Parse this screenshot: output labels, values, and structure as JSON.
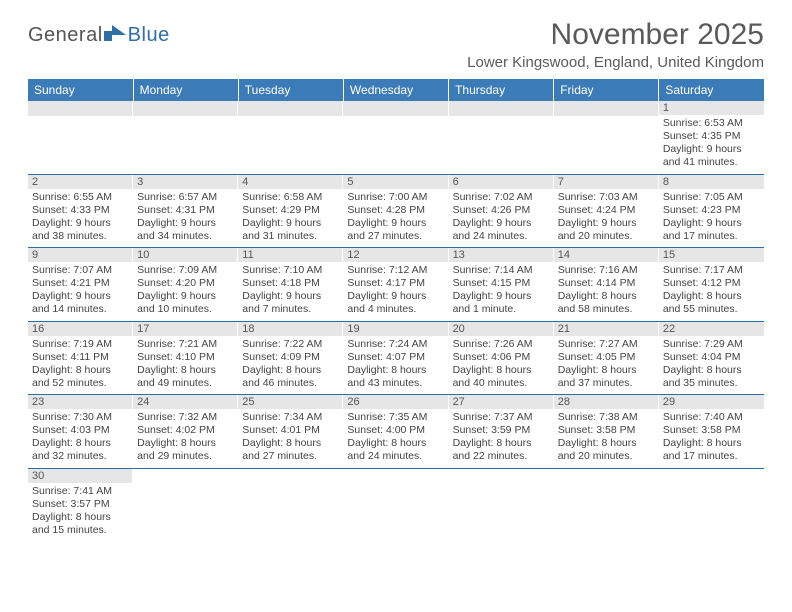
{
  "logo": {
    "text1": "General",
    "text2": "Blue"
  },
  "title": "November 2025",
  "location": "Lower Kingswood, England, United Kingdom",
  "calendar": {
    "type": "table",
    "header_bg": "#3b7bb8",
    "header_fg": "#ffffff",
    "daynum_bg": "#e6e6e6",
    "rule_color": "#2e6da4",
    "columns": [
      "Sunday",
      "Monday",
      "Tuesday",
      "Wednesday",
      "Thursday",
      "Friday",
      "Saturday"
    ],
    "weeks": [
      [
        null,
        null,
        null,
        null,
        null,
        null,
        {
          "n": "1",
          "sr": "Sunrise: 6:53 AM",
          "ss": "Sunset: 4:35 PM",
          "d1": "Daylight: 9 hours",
          "d2": "and 41 minutes."
        }
      ],
      [
        {
          "n": "2",
          "sr": "Sunrise: 6:55 AM",
          "ss": "Sunset: 4:33 PM",
          "d1": "Daylight: 9 hours",
          "d2": "and 38 minutes."
        },
        {
          "n": "3",
          "sr": "Sunrise: 6:57 AM",
          "ss": "Sunset: 4:31 PM",
          "d1": "Daylight: 9 hours",
          "d2": "and 34 minutes."
        },
        {
          "n": "4",
          "sr": "Sunrise: 6:58 AM",
          "ss": "Sunset: 4:29 PM",
          "d1": "Daylight: 9 hours",
          "d2": "and 31 minutes."
        },
        {
          "n": "5",
          "sr": "Sunrise: 7:00 AM",
          "ss": "Sunset: 4:28 PM",
          "d1": "Daylight: 9 hours",
          "d2": "and 27 minutes."
        },
        {
          "n": "6",
          "sr": "Sunrise: 7:02 AM",
          "ss": "Sunset: 4:26 PM",
          "d1": "Daylight: 9 hours",
          "d2": "and 24 minutes."
        },
        {
          "n": "7",
          "sr": "Sunrise: 7:03 AM",
          "ss": "Sunset: 4:24 PM",
          "d1": "Daylight: 9 hours",
          "d2": "and 20 minutes."
        },
        {
          "n": "8",
          "sr": "Sunrise: 7:05 AM",
          "ss": "Sunset: 4:23 PM",
          "d1": "Daylight: 9 hours",
          "d2": "and 17 minutes."
        }
      ],
      [
        {
          "n": "9",
          "sr": "Sunrise: 7:07 AM",
          "ss": "Sunset: 4:21 PM",
          "d1": "Daylight: 9 hours",
          "d2": "and 14 minutes."
        },
        {
          "n": "10",
          "sr": "Sunrise: 7:09 AM",
          "ss": "Sunset: 4:20 PM",
          "d1": "Daylight: 9 hours",
          "d2": "and 10 minutes."
        },
        {
          "n": "11",
          "sr": "Sunrise: 7:10 AM",
          "ss": "Sunset: 4:18 PM",
          "d1": "Daylight: 9 hours",
          "d2": "and 7 minutes."
        },
        {
          "n": "12",
          "sr": "Sunrise: 7:12 AM",
          "ss": "Sunset: 4:17 PM",
          "d1": "Daylight: 9 hours",
          "d2": "and 4 minutes."
        },
        {
          "n": "13",
          "sr": "Sunrise: 7:14 AM",
          "ss": "Sunset: 4:15 PM",
          "d1": "Daylight: 9 hours",
          "d2": "and 1 minute."
        },
        {
          "n": "14",
          "sr": "Sunrise: 7:16 AM",
          "ss": "Sunset: 4:14 PM",
          "d1": "Daylight: 8 hours",
          "d2": "and 58 minutes."
        },
        {
          "n": "15",
          "sr": "Sunrise: 7:17 AM",
          "ss": "Sunset: 4:12 PM",
          "d1": "Daylight: 8 hours",
          "d2": "and 55 minutes."
        }
      ],
      [
        {
          "n": "16",
          "sr": "Sunrise: 7:19 AM",
          "ss": "Sunset: 4:11 PM",
          "d1": "Daylight: 8 hours",
          "d2": "and 52 minutes."
        },
        {
          "n": "17",
          "sr": "Sunrise: 7:21 AM",
          "ss": "Sunset: 4:10 PM",
          "d1": "Daylight: 8 hours",
          "d2": "and 49 minutes."
        },
        {
          "n": "18",
          "sr": "Sunrise: 7:22 AM",
          "ss": "Sunset: 4:09 PM",
          "d1": "Daylight: 8 hours",
          "d2": "and 46 minutes."
        },
        {
          "n": "19",
          "sr": "Sunrise: 7:24 AM",
          "ss": "Sunset: 4:07 PM",
          "d1": "Daylight: 8 hours",
          "d2": "and 43 minutes."
        },
        {
          "n": "20",
          "sr": "Sunrise: 7:26 AM",
          "ss": "Sunset: 4:06 PM",
          "d1": "Daylight: 8 hours",
          "d2": "and 40 minutes."
        },
        {
          "n": "21",
          "sr": "Sunrise: 7:27 AM",
          "ss": "Sunset: 4:05 PM",
          "d1": "Daylight: 8 hours",
          "d2": "and 37 minutes."
        },
        {
          "n": "22",
          "sr": "Sunrise: 7:29 AM",
          "ss": "Sunset: 4:04 PM",
          "d1": "Daylight: 8 hours",
          "d2": "and 35 minutes."
        }
      ],
      [
        {
          "n": "23",
          "sr": "Sunrise: 7:30 AM",
          "ss": "Sunset: 4:03 PM",
          "d1": "Daylight: 8 hours",
          "d2": "and 32 minutes."
        },
        {
          "n": "24",
          "sr": "Sunrise: 7:32 AM",
          "ss": "Sunset: 4:02 PM",
          "d1": "Daylight: 8 hours",
          "d2": "and 29 minutes."
        },
        {
          "n": "25",
          "sr": "Sunrise: 7:34 AM",
          "ss": "Sunset: 4:01 PM",
          "d1": "Daylight: 8 hours",
          "d2": "and 27 minutes."
        },
        {
          "n": "26",
          "sr": "Sunrise: 7:35 AM",
          "ss": "Sunset: 4:00 PM",
          "d1": "Daylight: 8 hours",
          "d2": "and 24 minutes."
        },
        {
          "n": "27",
          "sr": "Sunrise: 7:37 AM",
          "ss": "Sunset: 3:59 PM",
          "d1": "Daylight: 8 hours",
          "d2": "and 22 minutes."
        },
        {
          "n": "28",
          "sr": "Sunrise: 7:38 AM",
          "ss": "Sunset: 3:58 PM",
          "d1": "Daylight: 8 hours",
          "d2": "and 20 minutes."
        },
        {
          "n": "29",
          "sr": "Sunrise: 7:40 AM",
          "ss": "Sunset: 3:58 PM",
          "d1": "Daylight: 8 hours",
          "d2": "and 17 minutes."
        }
      ],
      [
        {
          "n": "30",
          "sr": "Sunrise: 7:41 AM",
          "ss": "Sunset: 3:57 PM",
          "d1": "Daylight: 8 hours",
          "d2": "and 15 minutes."
        },
        null,
        null,
        null,
        null,
        null,
        null
      ]
    ]
  }
}
